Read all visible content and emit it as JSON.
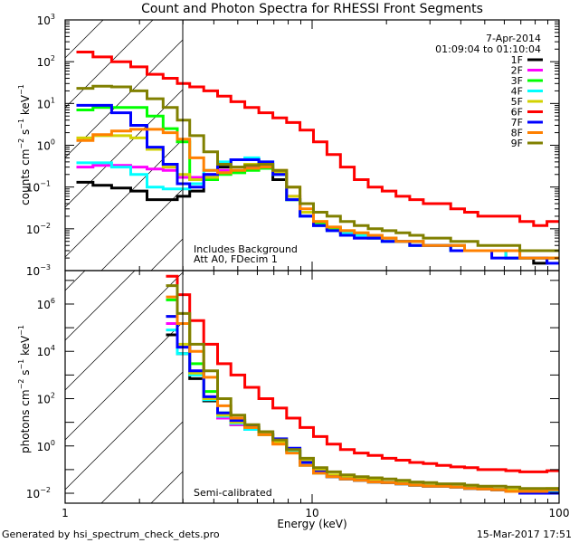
{
  "chart_data": [
    {
      "panel": "upper",
      "type": "line",
      "title": "Count and Photon Spectra for RHESSI Front Segments",
      "xlabel": "Energy (keV)",
      "ylabel": "counts cm^-2 s^-1 keV^-1",
      "xscale": "log",
      "yscale": "log",
      "xlim": [
        1,
        100
      ],
      "ylim": [
        0.001,
        1000
      ],
      "ytick_exponents": [
        -3,
        -2,
        -1,
        0,
        1,
        2,
        3
      ],
      "grid": false,
      "annotations": [
        "7-Apr-2014",
        "01:09:04 to 01:10:04",
        "Includes Background",
        "Att A0, FDecim 1"
      ],
      "legend_location": "top-right",
      "shaded_region_below_keV": 3,
      "x": [
        1.2,
        1.4,
        1.7,
        2.0,
        2.3,
        2.7,
        3.0,
        3.4,
        3.9,
        4.4,
        5.0,
        5.7,
        6.5,
        7.4,
        8.4,
        9.5,
        10.8,
        12.2,
        13.9,
        15.8,
        18,
        20.5,
        23.3,
        26.5,
        30,
        34,
        39,
        44,
        50,
        57,
        65,
        74,
        84,
        95
      ],
      "series": [
        {
          "name": "1F",
          "color": "#000000",
          "values": [
            0.13,
            0.11,
            0.095,
            0.08,
            0.05,
            0.05,
            0.06,
            0.08,
            0.15,
            0.3,
            0.45,
            0.45,
            0.35,
            0.15,
            0.05,
            0.02,
            0.012,
            0.01,
            0.008,
            0.007,
            0.006,
            0.006,
            0.005,
            0.005,
            0.004,
            0.004,
            0.004,
            0.003,
            0.003,
            0.003,
            0.002,
            0.002,
            0.0015,
            0.002
          ]
        },
        {
          "name": "2F",
          "color": "#ff00ff",
          "values": [
            0.3,
            0.33,
            0.33,
            0.3,
            0.27,
            0.25,
            0.17,
            0.17,
            0.2,
            0.25,
            0.3,
            0.32,
            0.3,
            0.2,
            0.06,
            0.02,
            0.012,
            0.01,
            0.008,
            0.006,
            0.006,
            0.005,
            0.005,
            0.004,
            0.004,
            0.004,
            0.003,
            0.003,
            0.003,
            0.003,
            0.002,
            0.002,
            0.002,
            0.002
          ]
        },
        {
          "name": "3F",
          "color": "#00ff00",
          "values": [
            7,
            8,
            8,
            8,
            5,
            2.5,
            1.2,
            0.15,
            0.15,
            0.2,
            0.22,
            0.25,
            0.28,
            0.2,
            0.05,
            0.02,
            0.013,
            0.01,
            0.008,
            0.007,
            0.006,
            0.005,
            0.005,
            0.004,
            0.004,
            0.004,
            0.003,
            0.003,
            0.003,
            0.003,
            0.002,
            0.002,
            0.002,
            0.002
          ]
        },
        {
          "name": "4F",
          "color": "#00ffff",
          "values": [
            0.38,
            0.38,
            0.3,
            0.2,
            0.1,
            0.09,
            0.09,
            0.12,
            0.25,
            0.4,
            0.45,
            0.5,
            0.4,
            0.2,
            0.05,
            0.02,
            0.012,
            0.009,
            0.008,
            0.007,
            0.006,
            0.005,
            0.005,
            0.004,
            0.004,
            0.004,
            0.003,
            0.003,
            0.003,
            0.003,
            0.002,
            0.002,
            0.002,
            0.002
          ]
        },
        {
          "name": "5F",
          "color": "#d2d200",
          "values": [
            1.5,
            1.7,
            1.7,
            1.5,
            0.8,
            0.3,
            0.2,
            0.15,
            0.17,
            0.22,
            0.3,
            0.35,
            0.32,
            0.22,
            0.06,
            0.025,
            0.015,
            0.011,
            0.009,
            0.008,
            0.007,
            0.006,
            0.005,
            0.005,
            0.004,
            0.004,
            0.004,
            0.003,
            0.003,
            0.003,
            0.003,
            0.002,
            0.002,
            0.002
          ]
        },
        {
          "name": "6F",
          "color": "#ff0000",
          "values": [
            170,
            130,
            100,
            75,
            50,
            40,
            30,
            25,
            20,
            15,
            11,
            8,
            6,
            4.5,
            3.5,
            2.3,
            1.2,
            0.6,
            0.3,
            0.15,
            0.1,
            0.08,
            0.06,
            0.05,
            0.04,
            0.04,
            0.03,
            0.025,
            0.02,
            0.02,
            0.02,
            0.015,
            0.012,
            0.015
          ]
        },
        {
          "name": "7F",
          "color": "#0000ff",
          "values": [
            9,
            9,
            6,
            3,
            0.9,
            0.35,
            0.12,
            0.1,
            0.2,
            0.35,
            0.45,
            0.45,
            0.4,
            0.2,
            0.05,
            0.02,
            0.012,
            0.009,
            0.007,
            0.006,
            0.006,
            0.005,
            0.005,
            0.004,
            0.004,
            0.004,
            0.003,
            0.003,
            0.003,
            0.002,
            0.002,
            0.002,
            0.002,
            0.0015
          ]
        },
        {
          "name": "8F",
          "color": "#ff8000",
          "values": [
            1.3,
            1.8,
            2.2,
            2.4,
            2.4,
            2.0,
            1.4,
            0.5,
            0.25,
            0.22,
            0.25,
            0.28,
            0.3,
            0.25,
            0.1,
            0.03,
            0.015,
            0.011,
            0.009,
            0.008,
            0.007,
            0.006,
            0.005,
            0.005,
            0.004,
            0.004,
            0.004,
            0.003,
            0.003,
            0.003,
            0.003,
            0.002,
            0.002,
            0.002
          ]
        },
        {
          "name": "9F",
          "color": "#808000",
          "values": [
            23,
            26,
            25,
            20,
            13,
            8,
            4,
            1.7,
            0.7,
            0.35,
            0.3,
            0.33,
            0.35,
            0.25,
            0.1,
            0.04,
            0.025,
            0.02,
            0.015,
            0.012,
            0.01,
            0.009,
            0.008,
            0.007,
            0.006,
            0.006,
            0.005,
            0.005,
            0.004,
            0.004,
            0.004,
            0.003,
            0.003,
            0.003
          ]
        }
      ]
    },
    {
      "panel": "lower",
      "type": "line",
      "xlabel": "Energy (keV)",
      "ylabel": "photons cm^-2 s^-1 keV^-1",
      "xscale": "log",
      "yscale": "log",
      "xlim": [
        1,
        100
      ],
      "ylim": [
        0.0038,
        26000000
      ],
      "ytick_exponents": [
        -2,
        0,
        2,
        4,
        6
      ],
      "xtick_labels": [
        "1",
        "10",
        "100"
      ],
      "grid": false,
      "annotations": [
        "Semi-calibrated"
      ],
      "shaded_region_below_keV": 3,
      "x": [
        2.7,
        3.0,
        3.4,
        3.9,
        4.4,
        5.0,
        5.7,
        6.5,
        7.4,
        8.4,
        9.5,
        10.8,
        12.2,
        13.9,
        15.8,
        18,
        20.5,
        23.3,
        26.5,
        30,
        34,
        39,
        44,
        50,
        57,
        65,
        74,
        84,
        95
      ],
      "series": [
        {
          "name": "1F",
          "color": "#000000",
          "values": [
            50000,
            8000,
            700,
            80,
            15,
            8,
            5,
            3,
            1.5,
            0.6,
            0.2,
            0.08,
            0.05,
            0.04,
            0.035,
            0.03,
            0.028,
            0.025,
            0.022,
            0.02,
            0.02,
            0.018,
            0.016,
            0.015,
            0.014,
            0.012,
            0.01,
            0.01,
            0.012
          ]
        },
        {
          "name": "2F",
          "color": "#ff00ff",
          "values": [
            150000,
            15000,
            1500,
            120,
            15,
            8,
            5,
            3,
            1.5,
            0.6,
            0.2,
            0.08,
            0.05,
            0.04,
            0.035,
            0.03,
            0.028,
            0.025,
            0.022,
            0.02,
            0.02,
            0.018,
            0.016,
            0.015,
            0.014,
            0.012,
            0.012,
            0.012,
            0.012
          ]
        },
        {
          "name": "3F",
          "color": "#00ff00",
          "values": [
            1500000,
            150000,
            3000,
            200,
            25,
            10,
            6,
            3,
            1.5,
            0.6,
            0.2,
            0.08,
            0.05,
            0.04,
            0.035,
            0.03,
            0.028,
            0.025,
            0.022,
            0.02,
            0.02,
            0.018,
            0.016,
            0.015,
            0.014,
            0.012,
            0.012,
            0.012,
            0.014
          ]
        },
        {
          "name": "4F",
          "color": "#00ffff",
          "values": [
            80000,
            8000,
            1000,
            90,
            18,
            9,
            5,
            3,
            1.5,
            0.6,
            0.15,
            0.07,
            0.05,
            0.04,
            0.035,
            0.03,
            0.028,
            0.025,
            0.022,
            0.02,
            0.02,
            0.018,
            0.016,
            0.015,
            0.014,
            0.012,
            0.012,
            0.012,
            0.012
          ]
        },
        {
          "name": "5F",
          "color": "#d2d200",
          "values": [
            300000,
            20000,
            1200,
            100,
            20,
            10,
            6,
            3,
            1.5,
            0.7,
            0.25,
            0.1,
            0.06,
            0.05,
            0.04,
            0.035,
            0.03,
            0.028,
            0.025,
            0.022,
            0.02,
            0.02,
            0.018,
            0.016,
            0.015,
            0.014,
            0.014,
            0.014,
            0.016
          ]
        },
        {
          "name": "6F",
          "color": "#ff0000",
          "values": [
            15000000,
            2500000,
            200000,
            20000,
            3000,
            1000,
            300,
            100,
            40,
            15,
            6,
            2.5,
            1.2,
            0.7,
            0.5,
            0.4,
            0.3,
            0.25,
            0.2,
            0.18,
            0.15,
            0.13,
            0.12,
            0.1,
            0.1,
            0.09,
            0.08,
            0.08,
            0.09
          ]
        },
        {
          "name": "7F",
          "color": "#0000ff",
          "values": [
            300000,
            15000,
            1500,
            120,
            25,
            12,
            7,
            4,
            2,
            0.8,
            0.2,
            0.08,
            0.05,
            0.04,
            0.035,
            0.03,
            0.028,
            0.025,
            0.022,
            0.02,
            0.02,
            0.018,
            0.016,
            0.015,
            0.014,
            0.012,
            0.01,
            0.01,
            0.01
          ]
        },
        {
          "name": "8F",
          "color": "#ff8000",
          "values": [
            2000000,
            150000,
            10000,
            800,
            50,
            15,
            6,
            3,
            1.2,
            0.5,
            0.15,
            0.07,
            0.05,
            0.04,
            0.035,
            0.03,
            0.028,
            0.025,
            0.022,
            0.02,
            0.02,
            0.018,
            0.016,
            0.015,
            0.014,
            0.012,
            0.012,
            0.012,
            0.014
          ]
        },
        {
          "name": "9F",
          "color": "#808000",
          "values": [
            6000000,
            400000,
            20000,
            1500,
            100,
            20,
            8,
            4,
            1.8,
            0.7,
            0.3,
            0.12,
            0.08,
            0.06,
            0.05,
            0.045,
            0.04,
            0.035,
            0.03,
            0.028,
            0.025,
            0.025,
            0.022,
            0.02,
            0.02,
            0.018,
            0.016,
            0.016,
            0.016
          ]
        }
      ]
    }
  ],
  "header": {
    "title": "Count and Photon Spectra for RHESSI Front Segments",
    "date": "7-Apr-2014",
    "time_range": "01:09:04 to 01:10:04"
  },
  "upper_panel": {
    "ylabel": "counts cm",
    "ylabel_full": "counts cm^-2 s^-1 keV^-1",
    "note_1": "Includes Background",
    "note_2": "Att A0, FDecim 1",
    "yticks": [
      "10",
      "10",
      "10",
      "10",
      "10",
      "10",
      "10"
    ],
    "ytick_exps": [
      "-3",
      "-2",
      "-1",
      "0",
      "1",
      "2",
      "3"
    ]
  },
  "lower_panel": {
    "ylabel_full": "photons cm^-2 s^-1 keV^-1",
    "note": "Semi-calibrated",
    "ytick_exps": [
      "-2",
      "0",
      "2",
      "4",
      "6"
    ]
  },
  "xaxis": {
    "label": "Energy (keV)",
    "tick_labels": [
      "1",
      "10",
      "100"
    ]
  },
  "footer": {
    "generated_by": "Generated by hsi_spectrum_check_dets.pro",
    "timestamp": "15-Mar-2017 17:51"
  },
  "legend": [
    {
      "label": "1F",
      "color": "#000000"
    },
    {
      "label": "2F",
      "color": "#ff00ff"
    },
    {
      "label": "3F",
      "color": "#00ff00"
    },
    {
      "label": "4F",
      "color": "#00ffff"
    },
    {
      "label": "5F",
      "color": "#d2d200"
    },
    {
      "label": "6F",
      "color": "#ff0000"
    },
    {
      "label": "7F",
      "color": "#0000ff"
    },
    {
      "label": "8F",
      "color": "#ff8000"
    },
    {
      "label": "9F",
      "color": "#808000"
    }
  ]
}
